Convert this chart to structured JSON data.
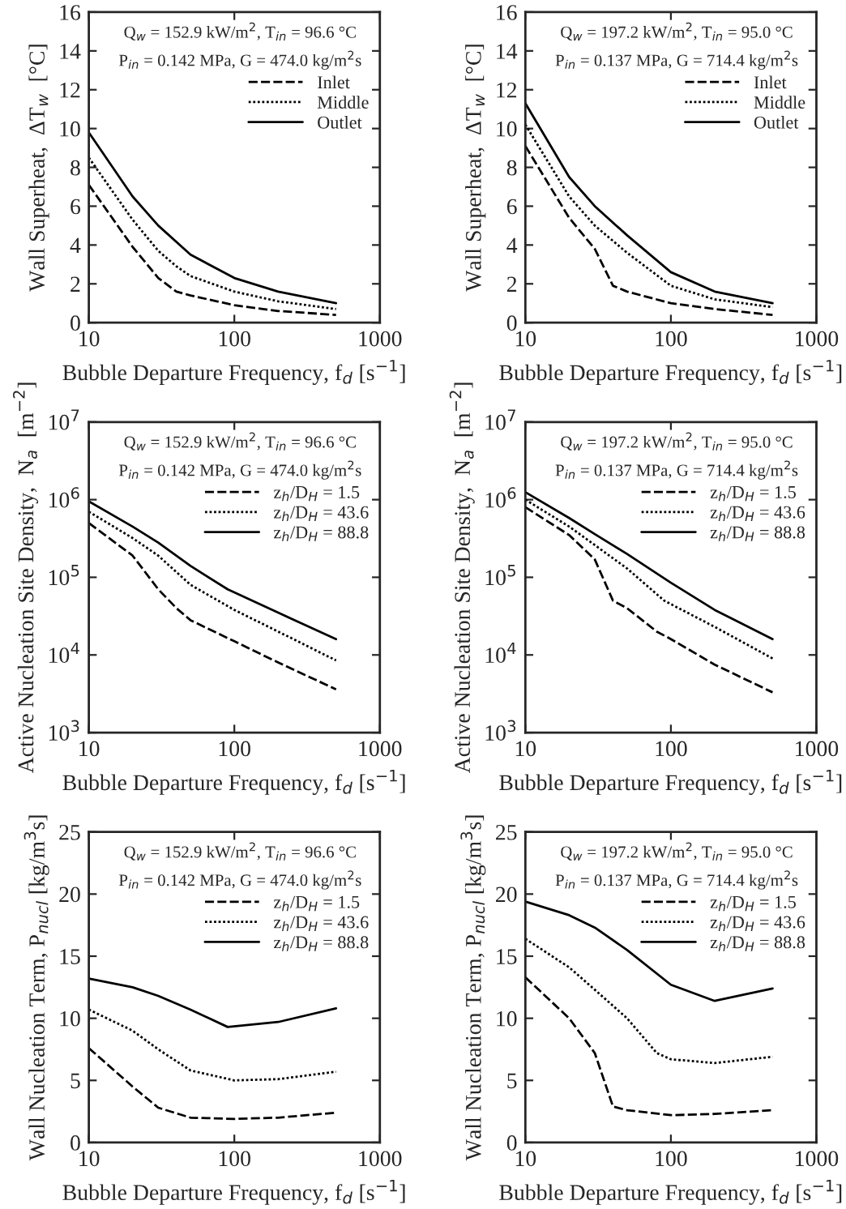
{
  "chart_data": [
    {
      "type": "line",
      "xlabel": "Bubble Departure Frequency, f$_{d}$ [s$^{−1}$]",
      "ylabel": "Wall Superheat,  ΔT$_{w}$  [°C]",
      "log": "x",
      "xlim": [
        10,
        1000
      ],
      "xticks": [
        10,
        100,
        1000
      ],
      "ylim": [
        0,
        16
      ],
      "yticks": [
        0,
        2,
        4,
        6,
        8,
        10,
        12,
        14,
        16
      ],
      "legend": "top right",
      "annotations": [
        "Q$_{w}$ = 152.9 kW/m$^{2}$, T$_{in}$ = 96.6 °C",
        "P$_{in}$ = 0.142 MPa, G = 474.0 kg/m$^{2}$s"
      ],
      "series": [
        {
          "name": "Inlet",
          "color": "#000000",
          "line_style": "dashed",
          "x": [
            10,
            20,
            30,
            40,
            50,
            100,
            200,
            500
          ],
          "values": [
            7.1,
            3.9,
            2.3,
            1.6,
            1.4,
            0.9,
            0.6,
            0.4
          ]
        },
        {
          "name": "Middle",
          "color": "#000000",
          "line_style": "dotted",
          "x": [
            10,
            20,
            30,
            40,
            50,
            100,
            200,
            500
          ],
          "values": [
            8.5,
            5.3,
            3.7,
            2.9,
            2.4,
            1.6,
            1.1,
            0.7
          ]
        },
        {
          "name": "Outlet",
          "color": "#000000",
          "line_style": "solid",
          "x": [
            10,
            20,
            30,
            50,
            100,
            200,
            500
          ],
          "values": [
            9.8,
            6.5,
            5.0,
            3.5,
            2.3,
            1.6,
            1.0
          ]
        }
      ]
    },
    {
      "type": "line",
      "xlabel": "Bubble Departure Frequency, f$_{d}$ [s$^{−1}$]",
      "ylabel": "Wall Superheat,  ΔT$_{w}$  [°C]",
      "log": "x",
      "xlim": [
        10,
        1000
      ],
      "xticks": [
        10,
        100,
        1000
      ],
      "ylim": [
        0,
        16
      ],
      "yticks": [
        0,
        2,
        4,
        6,
        8,
        10,
        12,
        14,
        16
      ],
      "legend": "top right",
      "annotations": [
        "Q$_{w}$ = 197.2 kW/m$^{2}$, T$_{in}$ = 95.0 °C",
        "P$_{in}$ = 0.137 MPa, G = 714.4 kg/m$^{2}$s"
      ],
      "series": [
        {
          "name": "Inlet",
          "color": "#000000",
          "line_style": "dashed",
          "x": [
            10,
            20,
            30,
            40,
            50,
            100,
            200,
            500
          ],
          "values": [
            9.1,
            5.4,
            3.8,
            1.9,
            1.6,
            1.0,
            0.7,
            0.4
          ]
        },
        {
          "name": "Middle",
          "color": "#000000",
          "line_style": "dotted",
          "x": [
            10,
            20,
            30,
            50,
            100,
            200,
            500
          ],
          "values": [
            10.2,
            6.5,
            5.0,
            3.6,
            1.9,
            1.2,
            0.8
          ]
        },
        {
          "name": "Outlet",
          "color": "#000000",
          "line_style": "solid",
          "x": [
            10,
            20,
            30,
            50,
            100,
            200,
            500
          ],
          "values": [
            11.3,
            7.5,
            6.0,
            4.5,
            2.6,
            1.6,
            1.0
          ]
        }
      ]
    },
    {
      "type": "line",
      "xlabel": "Bubble Departure Frequency, f$_{d}$ [s$^{−1}$]",
      "ylabel": "Active Nucleation Site Density,  N$_{a}$  [m$^{−2}$]",
      "log": "xy",
      "xlim": [
        10,
        1000
      ],
      "xticks": [
        10,
        100,
        1000
      ],
      "ylim": [
        1000,
        10000000
      ],
      "yticks": [
        {
          "value": 1000,
          "label": "10$^{3}$"
        },
        {
          "value": 10000,
          "label": "10$^{4}$"
        },
        {
          "value": 100000,
          "label": "10$^{5}$"
        },
        {
          "value": 1000000,
          "label": "10$^{6}$"
        },
        {
          "value": 10000000,
          "label": "10$^{7}$"
        }
      ],
      "legend": "top right",
      "annotations": [
        "Q$_{w}$ = 152.9 kW/m$^{2}$, T$_{in}$ = 96.6 °C",
        "P$_{in}$ = 0.142 MPa, G = 474.0 kg/m$^{2}$s"
      ],
      "series": [
        {
          "name": "z$_{h}$/D$_{H}$ = 1.5",
          "color": "#000000",
          "line_style": "dashed",
          "x": [
            10,
            20,
            30,
            40,
            50,
            100,
            200,
            500
          ],
          "values": [
            500000,
            190000,
            70000,
            40000,
            28000,
            15000,
            8000,
            3600
          ]
        },
        {
          "name": "z$_{h}$/D$_{H}$ = 43.6",
          "color": "#000000",
          "line_style": "dotted",
          "x": [
            10,
            20,
            30,
            50,
            100,
            200,
            500
          ],
          "values": [
            700000,
            320000,
            190000,
            80000,
            38000,
            20000,
            8500
          ]
        },
        {
          "name": "z$_{h}$/D$_{H}$ = 88.8",
          "color": "#000000",
          "line_style": "solid",
          "x": [
            10,
            20,
            30,
            50,
            90,
            200,
            500
          ],
          "values": [
            950000,
            450000,
            280000,
            140000,
            70000,
            35000,
            16000
          ]
        }
      ]
    },
    {
      "type": "line",
      "xlabel": "Bubble Departure Frequency, f$_{d}$ [s$^{−1}$]",
      "ylabel": "Active Nucleation Site Density,  N$_{a}$  [m$^{−2}$]",
      "log": "xy",
      "xlim": [
        10,
        1000
      ],
      "xticks": [
        10,
        100,
        1000
      ],
      "ylim": [
        1000,
        10000000
      ],
      "yticks": [
        {
          "value": 1000,
          "label": "10$^{3}$"
        },
        {
          "value": 10000,
          "label": "10$^{4}$"
        },
        {
          "value": 100000,
          "label": "10$^{5}$"
        },
        {
          "value": 1000000,
          "label": "10$^{6}$"
        },
        {
          "value": 10000000,
          "label": "10$^{7}$"
        }
      ],
      "legend": "top right",
      "annotations": [
        "Q$_{w}$ = 197.2 kW/m$^{2}$, T$_{in}$ = 95.0 °C",
        "P$_{in}$ = 0.137 MPa, G = 714.4 kg/m$^{2}$s"
      ],
      "series": [
        {
          "name": "z$_{h}$/D$_{H}$ = 1.5",
          "color": "#000000",
          "line_style": "dashed",
          "x": [
            10,
            20,
            30,
            40,
            50,
            80,
            100,
            200,
            500
          ],
          "values": [
            800000,
            350000,
            170000,
            50000,
            40000,
            20000,
            16000,
            7500,
            3300
          ]
        },
        {
          "name": "z$_{h}$/D$_{H}$ = 43.6",
          "color": "#000000",
          "line_style": "dotted",
          "x": [
            10,
            20,
            30,
            50,
            90,
            200,
            500
          ],
          "values": [
            1000000,
            450000,
            260000,
            130000,
            50000,
            23000,
            9000
          ]
        },
        {
          "name": "z$_{h}$/D$_{H}$ = 88.8",
          "color": "#000000",
          "line_style": "solid",
          "x": [
            10,
            20,
            30,
            50,
            100,
            200,
            500
          ],
          "values": [
            1250000,
            580000,
            360000,
            200000,
            85000,
            38000,
            16000
          ]
        }
      ]
    },
    {
      "type": "line",
      "xlabel": "Bubble Departure Frequency, f$_{d}$ [s$^{−1}$]",
      "ylabel": "Wall Nucleation Term, P$_{nucl}$ [kg/m$^{3}$s]",
      "log": "x",
      "xlim": [
        10,
        1000
      ],
      "xticks": [
        10,
        100,
        1000
      ],
      "ylim": [
        0,
        25
      ],
      "yticks": [
        0,
        5,
        10,
        15,
        20,
        25
      ],
      "legend": "top right",
      "annotations": [
        "Q$_{w}$ = 152.9 kW/m$^{2}$, T$_{in}$ = 96.6 °C",
        "P$_{in}$ = 0.142 MPa, G = 474.0 kg/m$^{2}$s"
      ],
      "series": [
        {
          "name": "z$_{h}$/D$_{H}$ = 1.5",
          "color": "#000000",
          "line_style": "dashed",
          "x": [
            10,
            20,
            30,
            50,
            100,
            200,
            500
          ],
          "values": [
            7.6,
            4.5,
            2.8,
            2.0,
            1.9,
            2.0,
            2.4
          ]
        },
        {
          "name": "z$_{h}$/D$_{H}$ = 43.6",
          "color": "#000000",
          "line_style": "dotted",
          "x": [
            10,
            20,
            30,
            50,
            100,
            200,
            500
          ],
          "values": [
            10.7,
            9.0,
            7.5,
            5.8,
            5.0,
            5.1,
            5.7
          ]
        },
        {
          "name": "z$_{h}$/D$_{H}$ = 88.8",
          "color": "#000000",
          "line_style": "solid",
          "x": [
            10,
            20,
            30,
            50,
            90,
            200,
            500
          ],
          "values": [
            13.2,
            12.5,
            11.8,
            10.7,
            9.3,
            9.7,
            10.8
          ]
        }
      ]
    },
    {
      "type": "line",
      "xlabel": "Bubble Departure Frequency, f$_{d}$ [s$^{−1}$]",
      "ylabel": "Wall Nucleation Term, P$_{nucl}$ [kg/m$^{3}$s]",
      "log": "x",
      "xlim": [
        10,
        1000
      ],
      "xticks": [
        10,
        100,
        1000
      ],
      "ylim": [
        0,
        25
      ],
      "yticks": [
        0,
        5,
        10,
        15,
        20,
        25
      ],
      "legend": "top right",
      "annotations": [
        "Q$_{w}$ = 197.2 kW/m$^{2}$, T$_{in}$ = 95.0 °C",
        "P$_{in}$ = 0.137 MPa, G = 714.4 kg/m$^{2}$s"
      ],
      "series": [
        {
          "name": "z$_{h}$/D$_{H}$ = 1.5",
          "color": "#000000",
          "line_style": "dashed",
          "x": [
            10,
            20,
            30,
            40,
            50,
            100,
            200,
            500
          ],
          "values": [
            13.3,
            10.0,
            7.2,
            2.9,
            2.6,
            2.2,
            2.3,
            2.6
          ]
        },
        {
          "name": "z$_{h}$/D$_{H}$ = 43.6",
          "color": "#000000",
          "line_style": "dotted",
          "x": [
            10,
            20,
            30,
            50,
            80,
            100,
            200,
            500
          ],
          "values": [
            16.4,
            14.1,
            12.3,
            10.0,
            7.2,
            6.7,
            6.4,
            6.9
          ]
        },
        {
          "name": "z$_{h}$/D$_{H}$ = 88.8",
          "color": "#000000",
          "line_style": "solid",
          "x": [
            10,
            20,
            30,
            50,
            100,
            200,
            500
          ],
          "values": [
            19.4,
            18.3,
            17.3,
            15.5,
            12.7,
            11.4,
            12.4
          ]
        }
      ]
    }
  ]
}
